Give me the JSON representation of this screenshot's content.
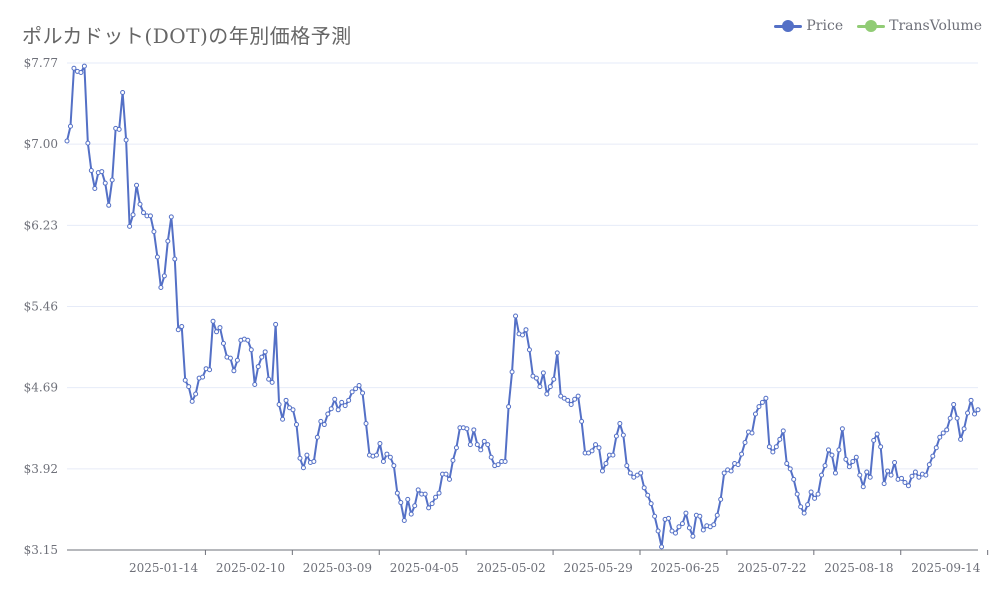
{
  "chart_data": {
    "type": "line",
    "title": "ポルカドット(DOT)の年別価格予測",
    "legend": {
      "placement": "top-right",
      "entries": [
        "Price",
        "TransVolume"
      ]
    },
    "y_axis": {
      "min": 3.15,
      "max": 7.77,
      "ticks": [
        "$3.15",
        "$3.92",
        "$4.69",
        "$5.46",
        "$6.23",
        "$7.00",
        "$7.77"
      ],
      "grid": true
    },
    "x_axis": {
      "ticks": [
        "2025-01-14",
        "2025-02-10",
        "2025-03-09",
        "2025-04-05",
        "2025-05-02",
        "2025-05-29",
        "2025-06-25",
        "2025-07-22",
        "2025-08-18",
        "2025-09-14"
      ]
    },
    "series": [
      {
        "name": "Price",
        "color": "#5470c6",
        "x_start": "2024-12-15",
        "x_end": "2025-09-24",
        "values": [
          7.03,
          7.17,
          7.72,
          7.69,
          7.68,
          7.74,
          7.01,
          6.75,
          6.58,
          6.73,
          6.74,
          6.63,
          6.42,
          6.66,
          7.15,
          7.14,
          7.49,
          7.04,
          6.22,
          6.33,
          6.61,
          6.43,
          6.35,
          6.32,
          6.32,
          6.17,
          5.93,
          5.64,
          5.75,
          6.08,
          6.31,
          5.91,
          5.24,
          5.27,
          4.76,
          4.7,
          4.56,
          4.63,
          4.78,
          4.79,
          4.87,
          4.86,
          5.32,
          5.22,
          5.26,
          5.11,
          4.98,
          4.97,
          4.85,
          4.95,
          5.14,
          5.15,
          5.14,
          5.05,
          4.72,
          4.89,
          4.98,
          5.03,
          4.77,
          4.74,
          5.29,
          4.53,
          4.39,
          4.57,
          4.5,
          4.48,
          4.34,
          4.02,
          3.93,
          4.05,
          3.98,
          3.99,
          4.22,
          4.37,
          4.34,
          4.44,
          4.49,
          4.58,
          4.48,
          4.55,
          4.52,
          4.57,
          4.65,
          4.68,
          4.71,
          4.64,
          4.35,
          4.05,
          4.04,
          4.05,
          4.16,
          3.99,
          4.06,
          4.03,
          3.95,
          3.69,
          3.6,
          3.43,
          3.63,
          3.49,
          3.57,
          3.72,
          3.68,
          3.68,
          3.55,
          3.59,
          3.65,
          3.69,
          3.87,
          3.87,
          3.82,
          4.0,
          4.12,
          4.31,
          4.31,
          4.3,
          4.15,
          4.29,
          4.15,
          4.1,
          4.18,
          4.15,
          4.03,
          3.95,
          3.96,
          3.99,
          3.99,
          4.51,
          4.84,
          5.37,
          5.2,
          5.19,
          5.24,
          5.05,
          4.8,
          4.78,
          4.7,
          4.83,
          4.63,
          4.7,
          4.77,
          5.02,
          4.61,
          4.59,
          4.57,
          4.53,
          4.58,
          4.61,
          4.37,
          4.07,
          4.07,
          4.09,
          4.15,
          4.12,
          3.9,
          3.97,
          4.05,
          4.05,
          4.23,
          4.35,
          4.24,
          3.95,
          3.88,
          3.84,
          3.86,
          3.88,
          3.74,
          3.67,
          3.59,
          3.47,
          3.33,
          3.18,
          3.44,
          3.45,
          3.33,
          3.31,
          3.37,
          3.4,
          3.5,
          3.36,
          3.28,
          3.48,
          3.47,
          3.34,
          3.38,
          3.37,
          3.39,
          3.48,
          3.63,
          3.88,
          3.91,
          3.9,
          3.97,
          3.96,
          4.06,
          4.17,
          4.27,
          4.26,
          4.44,
          4.51,
          4.55,
          4.59,
          4.13,
          4.08,
          4.13,
          4.2,
          4.28,
          3.97,
          3.92,
          3.82,
          3.68,
          3.56,
          3.5,
          3.58,
          3.7,
          3.64,
          3.68,
          3.86,
          3.95,
          4.1,
          4.05,
          3.88,
          4.1,
          4.3,
          4.01,
          3.94,
          3.99,
          4.03,
          3.86,
          3.75,
          3.89,
          3.84,
          4.19,
          4.25,
          4.13,
          3.78,
          3.9,
          3.86,
          3.98,
          3.82,
          3.83,
          3.79,
          3.76,
          3.85,
          3.89,
          3.84,
          3.87,
          3.86,
          3.96,
          4.04,
          4.12,
          4.22,
          4.26,
          4.29,
          4.4,
          4.53,
          4.4,
          4.2,
          4.3,
          4.45,
          4.57,
          4.44,
          4.48
        ]
      },
      {
        "name": "TransVolume",
        "color": "#91cc75",
        "values": []
      }
    ]
  }
}
